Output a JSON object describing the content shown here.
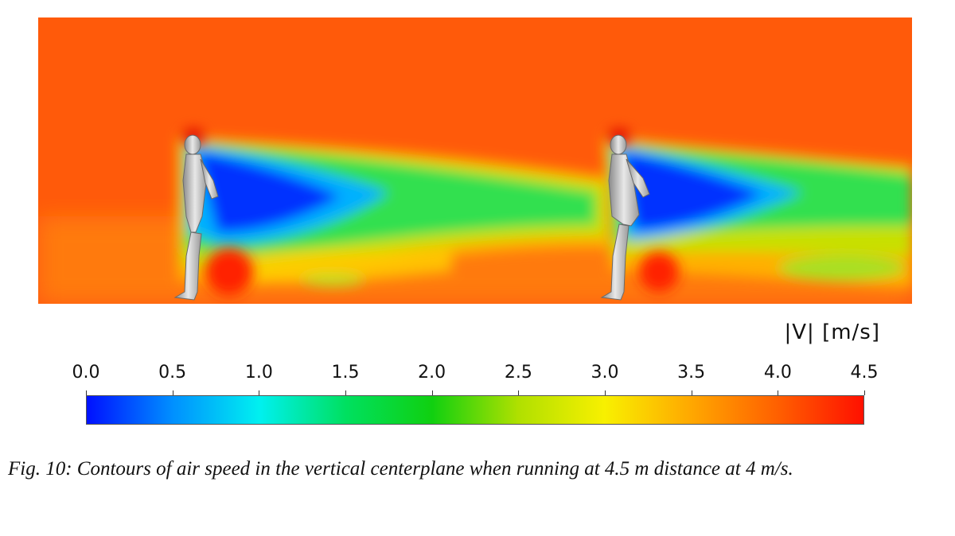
{
  "colorbar": {
    "title": "|V| [m/s]",
    "ticks": [
      "0.0",
      "0.5",
      "1.0",
      "1.5",
      "2.0",
      "2.5",
      "3.0",
      "3.5",
      "4.0",
      "4.5"
    ],
    "range": [
      0.0,
      4.5
    ],
    "colormap": [
      "#0010ff",
      "#0090ff",
      "#00f0f0",
      "#00e060",
      "#10d010",
      "#b0e000",
      "#f8f000",
      "#ffa800",
      "#ff6000",
      "#ff1000"
    ]
  },
  "scene": {
    "subject": "two running humanoid figures in CFD airflow",
    "background_color": "#ff5a0a",
    "wake_colors": [
      "#0030ff",
      "#00b0ff",
      "#30e050",
      "#c0e000",
      "#ffb000"
    ]
  },
  "caption": {
    "text": "Fig. 10: Contours of air speed in the vertical centerplane when running at 4.5 m distance at 4 m/s."
  }
}
